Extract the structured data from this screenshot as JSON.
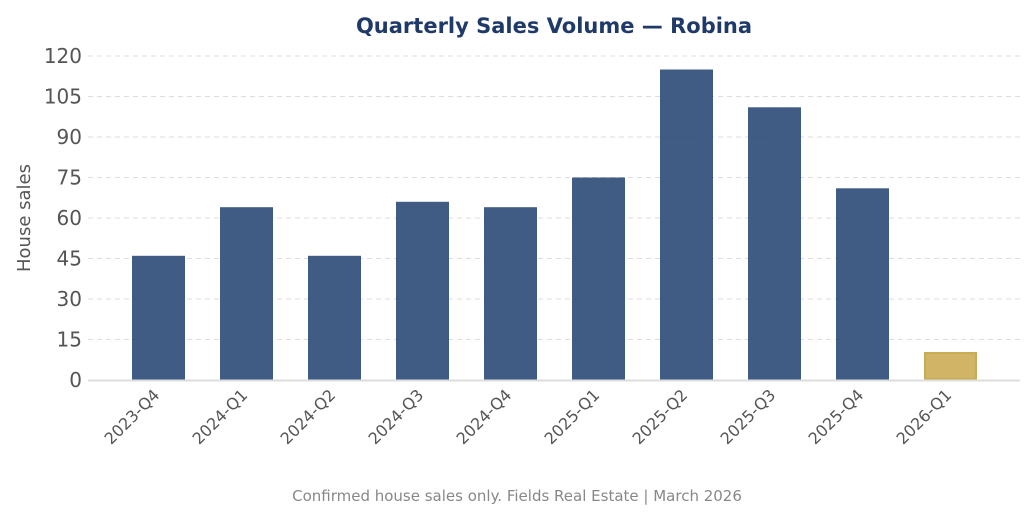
{
  "chart_data": {
    "type": "bar",
    "title": "Quarterly Sales Volume — Robina",
    "xlabel": "",
    "ylabel": "House sales",
    "ylim": [
      0,
      120
    ],
    "yticks": [
      0,
      15,
      30,
      45,
      60,
      75,
      90,
      105,
      120
    ],
    "grid": true,
    "categories": [
      "2023-Q4",
      "2024-Q1",
      "2024-Q2",
      "2024-Q3",
      "2024-Q4",
      "2025-Q1",
      "2025-Q2",
      "2025-Q3",
      "2025-Q4",
      "2026-Q1"
    ],
    "values": [
      46,
      64,
      46,
      66,
      64,
      75,
      115,
      101,
      71,
      10
    ],
    "colors": {
      "bar": "#2b4a78",
      "highlight_bar": "#d1b466",
      "highlight_border": "#c9aa55",
      "title": "#1f3a68",
      "grid": "#dddddd"
    },
    "highlighted_category": "2026-Q1",
    "footnote": "Confirmed house sales only. Fields Real Estate | March 2026"
  }
}
